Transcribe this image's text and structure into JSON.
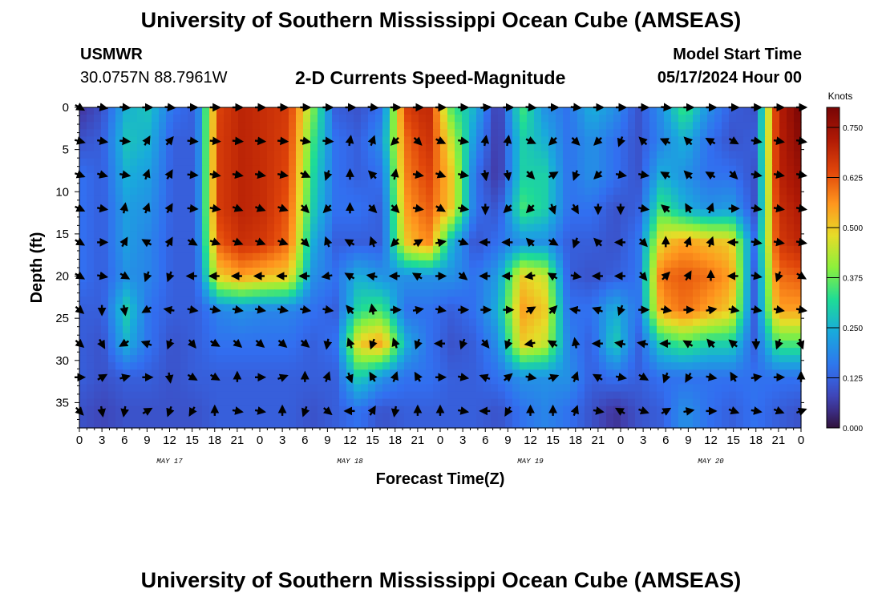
{
  "header": {
    "title": "University of Southern Mississippi Ocean Cube (AMSEAS)",
    "station": "USMWR",
    "coords": "30.0757N  88.7961W",
    "subtitle": "2-D Currents Speed-Magnitude",
    "model_start_label": "Model Start Time",
    "model_start_value": "05/17/2024 Hour 00"
  },
  "footer": {
    "title": "University of Southern Mississippi Ocean Cube (AMSEAS)"
  },
  "colors": {
    "background": "#ffffff",
    "arrow": "#000000"
  },
  "chart_data": {
    "type": "heatmap",
    "xlabel": "Forecast Time(Z)",
    "ylabel": "Depth (ft)",
    "x_ticks": [
      "0",
      "3",
      "6",
      "9",
      "12",
      "15",
      "18",
      "21",
      "0",
      "3",
      "6",
      "9",
      "12",
      "15",
      "18",
      "21",
      "0",
      "3",
      "6",
      "9",
      "12",
      "15",
      "18",
      "21",
      "0",
      "3",
      "6",
      "9",
      "12",
      "15",
      "18",
      "21",
      "0"
    ],
    "date_labels": [
      {
        "label": "MAY 17",
        "hour": 12
      },
      {
        "label": "MAY 18",
        "hour": 36
      },
      {
        "label": "MAY 19",
        "hour": 60
      },
      {
        "label": "MAY 20",
        "hour": 84
      }
    ],
    "xlim": [
      0,
      96
    ],
    "ylim": [
      0,
      38
    ],
    "y_ticks": [
      0,
      5,
      10,
      15,
      20,
      25,
      30,
      35
    ],
    "colorbar": {
      "label": "Knots",
      "range": [
        0,
        0.8
      ],
      "ticks": [
        0.0,
        0.125,
        0.25,
        0.375,
        0.5,
        0.625,
        0.75
      ],
      "tick_labels": [
        "0.000",
        "0.125",
        "0.250",
        "0.375",
        "0.500",
        "0.625",
        "0.750"
      ]
    },
    "depths_ft": [
      0,
      4,
      8,
      12,
      16,
      20,
      24,
      28,
      32,
      36
    ],
    "speed_knots": [
      [
        0.05,
        0.1,
        0.25,
        0.28,
        0.15,
        0.12,
        0.65,
        0.7,
        0.68,
        0.66,
        0.4,
        0.12,
        0.1,
        0.15,
        0.65,
        0.7,
        0.35,
        0.25,
        0.05,
        0.35,
        0.2,
        0.15,
        0.25,
        0.2,
        0.1,
        0.2,
        0.35,
        0.2,
        0.12,
        0.1,
        0.7,
        0.8
      ],
      [
        0.1,
        0.12,
        0.28,
        0.25,
        0.12,
        0.12,
        0.66,
        0.7,
        0.68,
        0.65,
        0.35,
        0.15,
        0.12,
        0.2,
        0.6,
        0.68,
        0.45,
        0.2,
        0.05,
        0.3,
        0.25,
        0.15,
        0.2,
        0.15,
        0.1,
        0.18,
        0.25,
        0.15,
        0.1,
        0.12,
        0.7,
        0.78
      ],
      [
        0.15,
        0.12,
        0.25,
        0.22,
        0.12,
        0.12,
        0.66,
        0.7,
        0.68,
        0.64,
        0.32,
        0.15,
        0.12,
        0.15,
        0.58,
        0.65,
        0.5,
        0.15,
        0.05,
        0.3,
        0.3,
        0.15,
        0.2,
        0.15,
        0.1,
        0.25,
        0.2,
        0.15,
        0.15,
        0.1,
        0.7,
        0.75
      ],
      [
        0.15,
        0.12,
        0.22,
        0.2,
        0.12,
        0.12,
        0.66,
        0.7,
        0.68,
        0.62,
        0.3,
        0.15,
        0.15,
        0.12,
        0.55,
        0.62,
        0.5,
        0.15,
        0.1,
        0.35,
        0.3,
        0.15,
        0.15,
        0.1,
        0.12,
        0.35,
        0.25,
        0.2,
        0.22,
        0.1,
        0.68,
        0.72
      ],
      [
        0.15,
        0.12,
        0.22,
        0.18,
        0.12,
        0.12,
        0.62,
        0.68,
        0.66,
        0.6,
        0.25,
        0.12,
        0.12,
        0.12,
        0.5,
        0.58,
        0.25,
        0.1,
        0.15,
        0.2,
        0.2,
        0.12,
        0.12,
        0.1,
        0.15,
        0.5,
        0.55,
        0.52,
        0.5,
        0.15,
        0.66,
        0.7
      ],
      [
        0.15,
        0.12,
        0.2,
        0.18,
        0.12,
        0.12,
        0.5,
        0.55,
        0.52,
        0.5,
        0.2,
        0.15,
        0.25,
        0.2,
        0.2,
        0.2,
        0.2,
        0.15,
        0.22,
        0.5,
        0.45,
        0.12,
        0.1,
        0.12,
        0.15,
        0.6,
        0.62,
        0.6,
        0.55,
        0.12,
        0.6,
        0.62
      ],
      [
        0.12,
        0.12,
        0.3,
        0.15,
        0.12,
        0.12,
        0.18,
        0.2,
        0.18,
        0.18,
        0.15,
        0.12,
        0.32,
        0.35,
        0.15,
        0.15,
        0.12,
        0.15,
        0.25,
        0.55,
        0.5,
        0.15,
        0.15,
        0.25,
        0.15,
        0.55,
        0.6,
        0.55,
        0.5,
        0.12,
        0.55,
        0.55
      ],
      [
        0.12,
        0.1,
        0.25,
        0.15,
        0.1,
        0.12,
        0.15,
        0.15,
        0.15,
        0.15,
        0.12,
        0.15,
        0.5,
        0.55,
        0.25,
        0.15,
        0.1,
        0.12,
        0.2,
        0.5,
        0.45,
        0.18,
        0.12,
        0.3,
        0.12,
        0.3,
        0.35,
        0.3,
        0.3,
        0.12,
        0.35,
        0.35
      ],
      [
        0.12,
        0.1,
        0.12,
        0.12,
        0.1,
        0.12,
        0.12,
        0.12,
        0.12,
        0.12,
        0.12,
        0.12,
        0.3,
        0.2,
        0.15,
        0.15,
        0.12,
        0.12,
        0.15,
        0.2,
        0.2,
        0.2,
        0.12,
        0.15,
        0.12,
        0.15,
        0.15,
        0.15,
        0.15,
        0.15,
        0.15,
        0.15
      ],
      [
        0.1,
        0.08,
        0.1,
        0.1,
        0.1,
        0.1,
        0.12,
        0.12,
        0.12,
        0.12,
        0.1,
        0.12,
        0.15,
        0.1,
        0.12,
        0.12,
        0.12,
        0.12,
        0.1,
        0.15,
        0.18,
        0.15,
        0.1,
        0.05,
        0.1,
        0.12,
        0.2,
        0.15,
        0.12,
        0.15,
        0.12,
        0.1
      ]
    ],
    "arrow_hours": [
      0,
      3,
      6,
      9,
      12,
      15,
      18,
      21,
      24,
      27,
      30,
      33,
      36,
      39,
      42,
      45,
      48,
      51,
      54,
      57,
      60,
      63,
      66,
      69,
      72,
      75,
      78,
      81,
      84,
      87,
      90,
      93,
      96
    ],
    "direction_deg": [
      [
        120,
        100,
        95,
        90,
        95,
        90,
        90,
        90,
        90,
        90,
        90,
        90,
        90,
        95,
        90,
        90,
        90,
        90,
        85,
        90,
        95,
        90,
        95,
        90,
        90,
        90,
        95,
        90,
        90,
        90,
        90,
        90,
        90
      ],
      [
        105,
        100,
        95,
        30,
        40,
        95,
        95,
        95,
        95,
        95,
        100,
        95,
        10,
        20,
        225,
        135,
        115,
        100,
        10,
        10,
        115,
        225,
        135,
        225,
        200,
        315,
        295,
        315,
        300,
        120,
        100,
        100,
        100
      ],
      [
        110,
        105,
        100,
        20,
        30,
        95,
        100,
        100,
        100,
        100,
        115,
        200,
        0,
        315,
        10,
        100,
        110,
        100,
        170,
        170,
        135,
        60,
        200,
        225,
        100,
        100,
        300,
        315,
        300,
        135,
        100,
        100,
        100
      ],
      [
        115,
        100,
        10,
        20,
        30,
        95,
        100,
        110,
        110,
        110,
        135,
        225,
        0,
        135,
        135,
        100,
        120,
        100,
        180,
        225,
        225,
        160,
        150,
        180,
        180,
        100,
        310,
        330,
        20,
        90,
        100,
        100,
        100
      ],
      [
        120,
        90,
        30,
        300,
        30,
        120,
        110,
        110,
        110,
        110,
        135,
        340,
        300,
        340,
        225,
        60,
        80,
        110,
        270,
        270,
        315,
        120,
        200,
        315,
        270,
        135,
        0,
        20,
        20,
        270,
        100,
        100,
        100
      ],
      [
        120,
        100,
        120,
        200,
        200,
        270,
        270,
        270,
        270,
        270,
        270,
        260,
        300,
        280,
        270,
        300,
        90,
        130,
        270,
        270,
        260,
        300,
        100,
        270,
        270,
        140,
        45,
        30,
        0,
        270,
        100,
        200,
        120
      ],
      [
        130,
        180,
        170,
        240,
        280,
        100,
        100,
        100,
        100,
        100,
        100,
        100,
        320,
        350,
        90,
        80,
        100,
        90,
        90,
        90,
        60,
        45,
        280,
        290,
        200,
        90,
        100,
        90,
        80,
        100,
        100,
        100,
        100
      ],
      [
        130,
        150,
        240,
        290,
        200,
        140,
        120,
        130,
        130,
        130,
        130,
        190,
        340,
        200,
        340,
        200,
        270,
        200,
        140,
        200,
        260,
        300,
        350,
        270,
        280,
        280,
        270,
        300,
        320,
        310,
        180,
        200,
        160
      ],
      [
        90,
        60,
        75,
        90,
        170,
        120,
        120,
        0,
        90,
        70,
        0,
        20,
        160,
        330,
        20,
        330,
        90,
        100,
        290,
        50,
        100,
        70,
        20,
        300,
        100,
        120,
        200,
        210,
        100,
        330,
        80,
        90,
        0
      ],
      [
        135,
        170,
        190,
        60,
        200,
        210,
        0,
        100,
        100,
        0,
        200,
        130,
        270,
        30,
        190,
        0,
        0,
        100,
        270,
        210,
        0,
        0,
        20,
        100,
        300,
        110,
        60,
        80,
        90,
        110,
        100,
        110,
        70
      ]
    ]
  }
}
